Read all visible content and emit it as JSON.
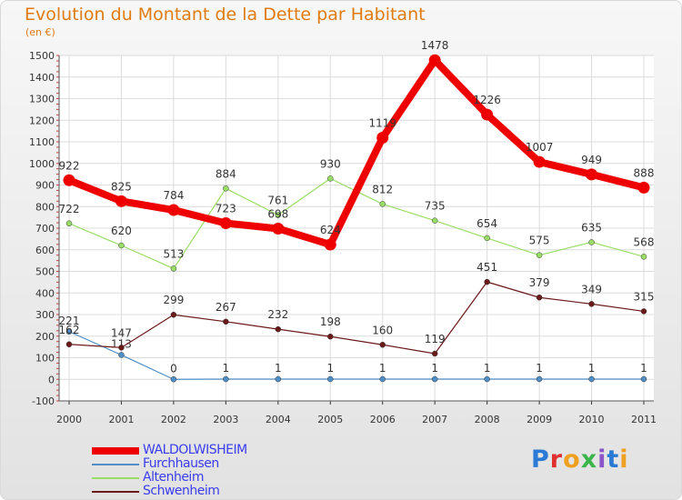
{
  "title": "Evolution du Montant de la Dette par Habitant",
  "subtitle": "(en €)",
  "logo_text": "Proxiti",
  "chart_data": {
    "type": "line",
    "title": "Evolution du Montant de la Dette par Habitant",
    "subtitle": "(en €)",
    "xlabel": "",
    "ylabel": "",
    "x": [
      "2000",
      "2001",
      "2002",
      "2003",
      "2004",
      "2005",
      "2006",
      "2007",
      "2008",
      "2009",
      "2010",
      "2011"
    ],
    "ylim": [
      -100,
      1500
    ],
    "yticks": [
      -100,
      0,
      100,
      200,
      300,
      400,
      500,
      600,
      700,
      800,
      900,
      1000,
      1100,
      1200,
      1300,
      1400,
      1500
    ],
    "grid": true,
    "legend_position": "bottom-left",
    "series": [
      {
        "name": "WALDOLWISHEIM",
        "color": "#ee0000",
        "values": [
          922,
          825,
          784,
          723,
          698,
          624,
          1119,
          1478,
          1226,
          1007,
          949,
          888
        ]
      },
      {
        "name": "Furchhausen",
        "color": "#4f8fc6",
        "values": [
          221,
          113,
          0,
          1,
          1,
          1,
          1,
          1,
          1,
          1,
          1,
          1
        ]
      },
      {
        "name": "Altenheim",
        "color": "#99dd66",
        "values": [
          722,
          620,
          513,
          884,
          761,
          930,
          812,
          735,
          654,
          575,
          635,
          568
        ]
      },
      {
        "name": "Schwenheim",
        "color": "#6b1a1a",
        "values": [
          162,
          147,
          299,
          267,
          232,
          198,
          160,
          119,
          451,
          379,
          349,
          315
        ]
      }
    ]
  }
}
